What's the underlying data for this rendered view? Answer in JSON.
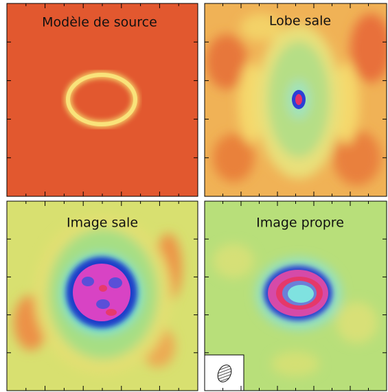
{
  "panels": [
    {
      "title": "Modèle de source"
    },
    {
      "title": "Lobe sale"
    },
    {
      "title": "Image sale"
    },
    {
      "title": "Image propre"
    }
  ]
}
